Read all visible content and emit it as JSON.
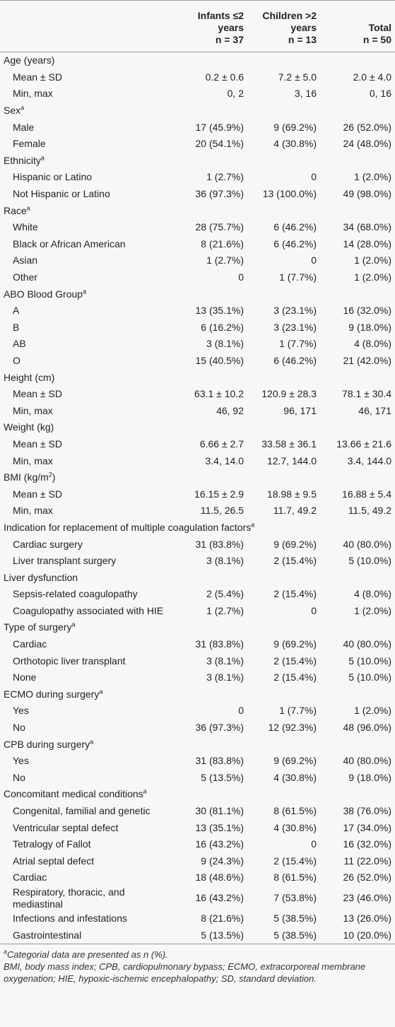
{
  "table": {
    "header": [
      {
        "label": "Infants ≤2 years",
        "count": "n = 37"
      },
      {
        "label": "Children >2 years",
        "count": "n = 13"
      },
      {
        "label": "Total",
        "count": "n = 50"
      }
    ],
    "sections": [
      {
        "title": {
          "text": "Age (years)"
        },
        "rows": [
          [
            "Mean ± SD",
            "0.2 ± 0.6",
            "7.2 ± 5.0",
            "2.0 ± 4.0"
          ],
          [
            "Min, max",
            "0, 2",
            "3, 16",
            "0, 16"
          ]
        ]
      },
      {
        "title": {
          "text": "Sex",
          "sup": "a"
        },
        "rows": [
          [
            "Male",
            "17 (45.9%)",
            "9 (69.2%)",
            "26 (52.0%)"
          ],
          [
            "Female",
            "20 (54.1%)",
            "4 (30.8%)",
            "24 (48.0%)"
          ]
        ]
      },
      {
        "title": {
          "text": "Ethnicity",
          "sup": "a"
        },
        "rows": [
          [
            "Hispanic or Latino",
            "1 (2.7%)",
            "0",
            "1 (2.0%)"
          ],
          [
            "Not Hispanic or Latino",
            "36 (97.3%)",
            "13 (100.0%)",
            "49 (98.0%)"
          ]
        ]
      },
      {
        "title": {
          "text": "Race",
          "sup": "a"
        },
        "rows": [
          [
            "White",
            "28 (75.7%)",
            "6 (46.2%)",
            "34 (68.0%)"
          ],
          [
            "Black or African American",
            "8 (21.6%)",
            "6 (46.2%)",
            "14 (28.0%)"
          ],
          [
            "Asian",
            "1 (2.7%)",
            "0",
            "1 (2.0%)"
          ],
          [
            "Other",
            "0",
            "1 (7.7%)",
            "1 (2.0%)"
          ]
        ]
      },
      {
        "title": {
          "text": "ABO Blood Group",
          "sup": "a"
        },
        "rows": [
          [
            "A",
            "13 (35.1%)",
            "3 (23.1%)",
            "16 (32.0%)"
          ],
          [
            "B",
            "6 (16.2%)",
            "3 (23.1%)",
            "9 (18.0%)"
          ],
          [
            "AB",
            "3 (8.1%)",
            "1 (7.7%)",
            "4 (8.0%)"
          ],
          [
            "O",
            "15 (40.5%)",
            "6 (46.2%)",
            "21 (42.0%)"
          ]
        ]
      },
      {
        "title": {
          "text": "Height (cm)"
        },
        "rows": [
          [
            "Mean ± SD",
            "63.1 ± 10.2",
            "120.9 ± 28.3",
            "78.1 ± 30.4"
          ],
          [
            "Min, max",
            "46, 92",
            "96, 171",
            "46, 171"
          ]
        ]
      },
      {
        "title": {
          "text": "Weight (kg)"
        },
        "rows": [
          [
            "Mean ± SD",
            "6.66 ± 2.7",
            "33.58 ± 36.1",
            "13.66 ± 21.6"
          ],
          [
            "Min, max",
            "3.4, 14.0",
            "12.7, 144.0",
            "3.4, 144.0"
          ]
        ]
      },
      {
        "title": {
          "text": "BMI (kg/m",
          "sup": "2",
          "after": ")"
        },
        "rows": [
          [
            "Mean ± SD",
            "16.15 ± 2.9",
            "18.98 ± 9.5",
            "16.88 ± 5.4"
          ],
          [
            "Min, max",
            "11.5, 26.5",
            "11.7, 49.2",
            "11.5, 49.2"
          ]
        ]
      },
      {
        "title": {
          "text": "Indication for replacement of multiple coagulation factors",
          "sup": "a"
        },
        "rows": [
          [
            "Cardiac surgery",
            "31 (83.8%)",
            "9 (69.2%)",
            "40 (80.0%)"
          ],
          [
            "Liver transplant surgery",
            "3 (8.1%)",
            "2 (15.4%)",
            "5 (10.0%)"
          ]
        ]
      },
      {
        "title": {
          "text": "Liver dysfunction"
        },
        "rows": [
          [
            "Sepsis-related coagulopathy",
            "2 (5.4%)",
            "2 (15.4%)",
            "4 (8.0%)"
          ],
          [
            "Coagulopathy associated with HIE",
            "1 (2.7%)",
            "0",
            "1 (2.0%)"
          ]
        ]
      },
      {
        "title": {
          "text": "Type of surgery",
          "sup": "a"
        },
        "rows": [
          [
            "Cardiac",
            "31 (83.8%)",
            "9 (69.2%)",
            "40 (80.0%)"
          ],
          [
            "Orthotopic liver transplant",
            "3 (8.1%)",
            "2 (15.4%)",
            "5 (10.0%)"
          ],
          [
            "None",
            "3 (8.1%)",
            "2 (15.4%)",
            "5 (10.0%)"
          ]
        ]
      },
      {
        "title": {
          "text": "ECMO during surgery",
          "sup": "a"
        },
        "rows": [
          [
            "Yes",
            "0",
            "1 (7.7%)",
            "1 (2.0%)"
          ],
          [
            "No",
            "36 (97.3%)",
            "12 (92.3%)",
            "48 (96.0%)"
          ]
        ]
      },
      {
        "title": {
          "text": "CPB during surgery",
          "sup": "a"
        },
        "rows": [
          [
            "Yes",
            "31 (83.8%)",
            "9 (69.2%)",
            "40 (80.0%)"
          ],
          [
            "No",
            "5 (13.5%)",
            "4 (30.8%)",
            "9 (18.0%)"
          ]
        ]
      },
      {
        "title": {
          "text": "Concomitant medical conditions",
          "sup": "a"
        },
        "rows": [
          [
            "Congenital, familial and genetic",
            "30 (81.1%)",
            "8 (61.5%)",
            "38 (76.0%)"
          ],
          [
            "Ventricular septal defect",
            "13 (35.1%)",
            "4 (30.8%)",
            "17 (34.0%)"
          ],
          [
            "Tetralogy of Fallot",
            "16 (43.2%)",
            "0",
            "16 (32.0%)"
          ],
          [
            "Atrial septal defect",
            "9 (24.3%)",
            "2 (15.4%)",
            "11 (22.0%)"
          ],
          [
            "Cardiac",
            "18 (48.6%)",
            "8 (61.5%)",
            "26 (52.0%)"
          ],
          [
            "Respiratory, thoracic, and mediastinal",
            "16 (43.2%)",
            "7 (53.8%)",
            "23 (46.0%)"
          ],
          [
            "Infections and infestations",
            "8 (21.6%)",
            "5 (38.5%)",
            "13 (26.0%)"
          ],
          [
            "Gastrointestinal",
            "5 (13.5%)",
            "5 (38.5%)",
            "10 (20.0%)"
          ]
        ]
      }
    ]
  },
  "footnotes": [
    {
      "sup": "a",
      "text": "Categorial data are presented as n (%)."
    },
    {
      "text": "BMI, body mass index; CPB, cardiopulmonary bypass; ECMO, extracorporeal membrane oxygenation; HIE, hypoxic-ischemic encephalopathy; SD, standard deviation."
    }
  ]
}
